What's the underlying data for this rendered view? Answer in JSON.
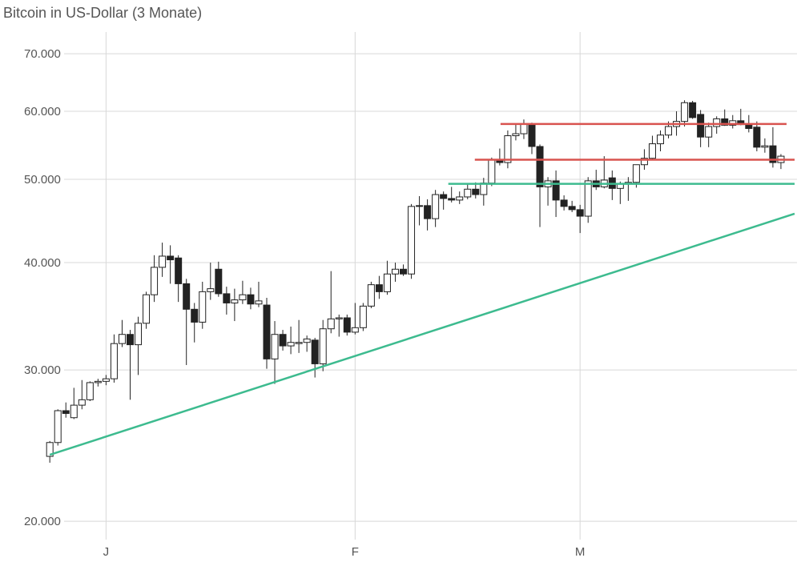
{
  "chart_data": {
    "type": "candlestick",
    "title": "Bitcoin in US-Dollar (3 Monate)",
    "log_scale": true,
    "grid": true,
    "xlim": [
      -6,
      93
    ],
    "xticks": [
      {
        "value": 7,
        "label": "J"
      },
      {
        "value": 38,
        "label": "F"
      },
      {
        "value": 66,
        "label": "M"
      }
    ],
    "ylim": [
      18800,
      74200
    ],
    "yticks": [
      {
        "value": 20000,
        "label": "20.000"
      },
      {
        "value": 30000,
        "label": "30.000"
      },
      {
        "value": 40000,
        "label": "40.000"
      },
      {
        "value": 50000,
        "label": "50.000"
      },
      {
        "value": 60000,
        "label": "60.000"
      },
      {
        "value": 70000,
        "label": "70.000"
      }
    ],
    "up_color": "#ffffff",
    "down_color": "#222222",
    "candles": [
      [
        23800,
        24800,
        23400,
        24700
      ],
      [
        24700,
        27000,
        24500,
        26900
      ],
      [
        26900,
        27500,
        26400,
        26700
      ],
      [
        26400,
        28600,
        26300,
        27300
      ],
      [
        27300,
        29200,
        27000,
        27700
      ],
      [
        27700,
        29100,
        27600,
        29000
      ],
      [
        29000,
        29300,
        28700,
        29100
      ],
      [
        29100,
        29600,
        28800,
        29300
      ],
      [
        29300,
        33000,
        29000,
        32200
      ],
      [
        32200,
        34300,
        31900,
        33000
      ],
      [
        33000,
        33400,
        27700,
        32100
      ],
      [
        32100,
        34600,
        29600,
        34000
      ],
      [
        34000,
        37000,
        33500,
        36700
      ],
      [
        36700,
        40800,
        36000,
        39500
      ],
      [
        39500,
        42200,
        38500,
        40700
      ],
      [
        40700,
        41900,
        37800,
        40300
      ],
      [
        40500,
        40800,
        36000,
        37800
      ],
      [
        37800,
        38300,
        30400,
        35300
      ],
      [
        35300,
        35900,
        32300,
        34100
      ],
      [
        34100,
        38000,
        33500,
        37000
      ],
      [
        37000,
        40000,
        36200,
        37300
      ],
      [
        39300,
        40100,
        36500,
        36800
      ],
      [
        36800,
        37500,
        34800,
        35900
      ],
      [
        35900,
        37300,
        34200,
        36200
      ],
      [
        36200,
        38100,
        35800,
        36700
      ],
      [
        36700,
        37400,
        35300,
        35800
      ],
      [
        35800,
        38000,
        35500,
        36100
      ],
      [
        35700,
        36400,
        30100,
        30900
      ],
      [
        30900,
        34200,
        28900,
        33000
      ],
      [
        33000,
        33400,
        31600,
        32000
      ],
      [
        32000,
        33700,
        31300,
        32300
      ],
      [
        32200,
        34300,
        31400,
        32300
      ],
      [
        32300,
        32900,
        31500,
        32600
      ],
      [
        32500,
        32700,
        29400,
        30500
      ],
      [
        30500,
        34300,
        29900,
        33500
      ],
      [
        33500,
        39100,
        33100,
        34400
      ],
      [
        34400,
        34800,
        32800,
        34500
      ],
      [
        34500,
        34800,
        32900,
        33200
      ],
      [
        33200,
        35900,
        33000,
        33600
      ],
      [
        33600,
        35900,
        33300,
        35600
      ],
      [
        35600,
        38000,
        35400,
        37700
      ],
      [
        37700,
        38600,
        36300,
        37000
      ],
      [
        37000,
        40200,
        36700,
        38800
      ],
      [
        38800,
        40000,
        38000,
        39300
      ],
      [
        39300,
        39800,
        38600,
        38800
      ],
      [
        38800,
        46800,
        38300,
        46500
      ],
      [
        46500,
        47800,
        44200,
        46600
      ],
      [
        46600,
        47400,
        43600,
        45000
      ],
      [
        45000,
        48600,
        44000,
        48000
      ],
      [
        48000,
        48400,
        46100,
        47500
      ],
      [
        47500,
        49000,
        47000,
        47300
      ],
      [
        47300,
        48400,
        46800,
        47700
      ],
      [
        47700,
        49500,
        47400,
        48700
      ],
      [
        48700,
        49600,
        47500,
        48000
      ],
      [
        48000,
        50200,
        46600,
        49500
      ],
      [
        49500,
        53000,
        49100,
        52700
      ],
      [
        52700,
        54300,
        51900,
        52300
      ],
      [
        52300,
        57000,
        51500,
        56200
      ],
      [
        56200,
        58000,
        55500,
        56500
      ],
      [
        56500,
        58700,
        55700,
        58000
      ],
      [
        58000,
        58200,
        53500,
        54600
      ],
      [
        54600,
        54900,
        44000,
        49000
      ],
      [
        49000,
        50300,
        46600,
        49800
      ],
      [
        49800,
        51200,
        45200,
        47300
      ],
      [
        47300,
        47900,
        46000,
        46500
      ],
      [
        46500,
        47200,
        45800,
        46100
      ],
      [
        46100,
        46700,
        43300,
        45300
      ],
      [
        45300,
        50300,
        44500,
        49800
      ],
      [
        49800,
        51300,
        48600,
        49000
      ],
      [
        49000,
        53200,
        48800,
        49900
      ],
      [
        50200,
        51200,
        47300,
        48800
      ],
      [
        48800,
        49700,
        46800,
        49400
      ],
      [
        49400,
        50300,
        47200,
        49600
      ],
      [
        49600,
        52000,
        48900,
        52000
      ],
      [
        52000,
        54200,
        51300,
        52900
      ],
      [
        52900,
        56200,
        52600,
        55000
      ],
      [
        55000,
        57000,
        53900,
        56300
      ],
      [
        56300,
        58400,
        55800,
        57600
      ],
      [
        57600,
        60000,
        56200,
        58400
      ],
      [
        58400,
        61800,
        57600,
        61400
      ],
      [
        61400,
        61700,
        58800,
        59000
      ],
      [
        59500,
        60200,
        54500,
        56000
      ],
      [
        56000,
        58200,
        54500,
        57600
      ],
      [
        57600,
        59200,
        56500,
        58800
      ],
      [
        58800,
        60300,
        57700,
        57800
      ],
      [
        57800,
        59400,
        57300,
        58500
      ],
      [
        58500,
        60400,
        57800,
        57900
      ],
      [
        58000,
        59400,
        56700,
        57300
      ],
      [
        57500,
        58400,
        53900,
        54500
      ],
      [
        54500,
        55800,
        53700,
        54700
      ],
      [
        54700,
        57500,
        51600,
        52300
      ],
      [
        52300,
        53500,
        51400,
        53200
      ]
    ],
    "levels": [
      {
        "color": "#d9534f",
        "value": 58000,
        "start": 56.1,
        "end": 91.7
      },
      {
        "color": "#d9534f",
        "value": 52700,
        "start": 52.9,
        "end": 92.7
      },
      {
        "color": "#3dbb8f",
        "value": 49400,
        "start": 49.6,
        "end": 92.7
      }
    ],
    "trend": {
      "color": "#3dbb8f",
      "start": [
        0,
        23900
      ],
      "end": [
        92.7,
        45600
      ]
    }
  }
}
